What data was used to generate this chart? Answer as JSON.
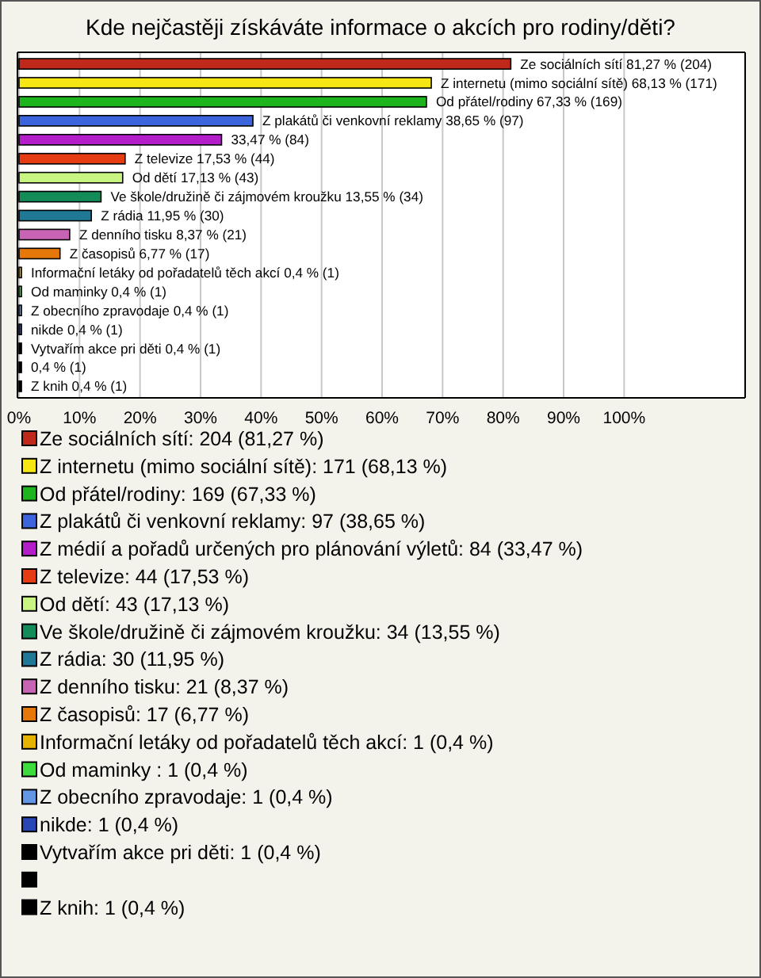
{
  "chart_data": {
    "type": "bar",
    "orientation": "horizontal",
    "title": "Kde nejčastěji získáváte informace o akcích pro rodiny/děti?",
    "categories": [
      null,
      null,
      null,
      null,
      null,
      null,
      null,
      null,
      null,
      null,
      null,
      null,
      null,
      null,
      null,
      null,
      null,
      null
    ],
    "series": [
      {
        "name": "Ze sociálních sítí: 204 (81,27 %)",
        "color": "#c0281c",
        "values": [
          81.27,
          null,
          null,
          null,
          null,
          null,
          null,
          null,
          null,
          null,
          null,
          null,
          null,
          null,
          null,
          null,
          null,
          null
        ],
        "value_labels": [
          "Ze sociálních sítí 81,27 % (204)",
          null,
          null,
          null,
          null,
          null,
          null,
          null,
          null,
          null,
          null,
          null,
          null,
          null,
          null,
          null,
          null,
          null
        ]
      },
      {
        "name": "Z internetu (mimo sociální sítě): 171 (68,13 %)",
        "color": "#f5e614",
        "values": [
          null,
          68.13,
          null,
          null,
          null,
          null,
          null,
          null,
          null,
          null,
          null,
          null,
          null,
          null,
          null,
          null,
          null,
          null
        ],
        "value_labels": [
          null,
          "Z internetu (mimo sociální sítě) 68,13 % (171)",
          null,
          null,
          null,
          null,
          null,
          null,
          null,
          null,
          null,
          null,
          null,
          null,
          null,
          null,
          null,
          null
        ]
      },
      {
        "name": "Od přátel/rodiny: 169 (67,33 %)",
        "color": "#1eb41e",
        "values": [
          null,
          null,
          67.33,
          null,
          null,
          null,
          null,
          null,
          null,
          null,
          null,
          null,
          null,
          null,
          null,
          null,
          null,
          null
        ],
        "value_labels": [
          null,
          null,
          "Od přátel/rodiny 67,33 % (169)",
          null,
          null,
          null,
          null,
          null,
          null,
          null,
          null,
          null,
          null,
          null,
          null,
          null,
          null,
          null
        ]
      },
      {
        "name": "Z plakátů či venkovní reklamy: 97 (38,65 %)",
        "color": "#3c64dc",
        "values": [
          null,
          null,
          null,
          38.65,
          null,
          null,
          null,
          null,
          null,
          null,
          null,
          null,
          null,
          null,
          null,
          null,
          null,
          null
        ],
        "value_labels": [
          null,
          null,
          null,
          "Z plakátů či venkovní reklamy 38,65 % (97)",
          null,
          null,
          null,
          null,
          null,
          null,
          null,
          null,
          null,
          null,
          null,
          null,
          null,
          null
        ]
      },
      {
        "name": "Z médií a pořadů určených pro plánování výletů: 84 (33,47 %)",
        "color": "#b41ec8",
        "values": [
          null,
          null,
          null,
          null,
          33.47,
          null,
          null,
          null,
          null,
          null,
          null,
          null,
          null,
          null,
          null,
          null,
          null,
          null
        ],
        "value_labels": [
          null,
          null,
          null,
          null,
          "33,47 % (84)",
          null,
          null,
          null,
          null,
          null,
          null,
          null,
          null,
          null,
          null,
          null,
          null,
          null
        ]
      },
      {
        "name": "Z televize: 44 (17,53 %)",
        "color": "#e63c14",
        "values": [
          null,
          null,
          null,
          null,
          null,
          17.53,
          null,
          null,
          null,
          null,
          null,
          null,
          null,
          null,
          null,
          null,
          null,
          null
        ],
        "value_labels": [
          null,
          null,
          null,
          null,
          null,
          "Z televize 17,53 % (44)",
          null,
          null,
          null,
          null,
          null,
          null,
          null,
          null,
          null,
          null,
          null,
          null
        ]
      },
      {
        "name": "Od dětí: 43 (17,13 %)",
        "color": "#c8f582",
        "values": [
          null,
          null,
          null,
          null,
          null,
          null,
          17.13,
          null,
          null,
          null,
          null,
          null,
          null,
          null,
          null,
          null,
          null,
          null
        ],
        "value_labels": [
          null,
          null,
          null,
          null,
          null,
          null,
          "Od dětí 17,13 % (43)",
          null,
          null,
          null,
          null,
          null,
          null,
          null,
          null,
          null,
          null,
          null
        ]
      },
      {
        "name": "Ve škole/družině či zájmovém kroužku: 34 (13,55 %)",
        "color": "#148c5a",
        "values": [
          null,
          null,
          null,
          null,
          null,
          null,
          null,
          13.55,
          null,
          null,
          null,
          null,
          null,
          null,
          null,
          null,
          null,
          null
        ],
        "value_labels": [
          null,
          null,
          null,
          null,
          null,
          null,
          null,
          "Ve škole/družině či zájmovém kroužku 13,55 % (34)",
          null,
          null,
          null,
          null,
          null,
          null,
          null,
          null,
          null,
          null
        ]
      },
      {
        "name": "Z rádia: 30 (11,95 %)",
        "color": "#1e7896",
        "values": [
          null,
          null,
          null,
          null,
          null,
          null,
          null,
          null,
          11.95,
          null,
          null,
          null,
          null,
          null,
          null,
          null,
          null,
          null
        ],
        "value_labels": [
          null,
          null,
          null,
          null,
          null,
          null,
          null,
          null,
          "Z rádia 11,95 % (30)",
          null,
          null,
          null,
          null,
          null,
          null,
          null,
          null,
          null
        ]
      },
      {
        "name": "Z denního tisku: 21 (8,37 %)",
        "color": "#c864b4",
        "values": [
          null,
          null,
          null,
          null,
          null,
          null,
          null,
          null,
          null,
          8.37,
          null,
          null,
          null,
          null,
          null,
          null,
          null,
          null
        ],
        "value_labels": [
          null,
          null,
          null,
          null,
          null,
          null,
          null,
          null,
          null,
          "Z denního tisku 8,37 % (21)",
          null,
          null,
          null,
          null,
          null,
          null,
          null,
          null
        ]
      },
      {
        "name": "Z časopisů: 17 (6,77 %)",
        "color": "#e6780a",
        "values": [
          null,
          null,
          null,
          null,
          null,
          null,
          null,
          null,
          null,
          null,
          6.77,
          null,
          null,
          null,
          null,
          null,
          null,
          null
        ],
        "value_labels": [
          null,
          null,
          null,
          null,
          null,
          null,
          null,
          null,
          null,
          null,
          "Z časopisů 6,77 % (17)",
          null,
          null,
          null,
          null,
          null,
          null,
          null
        ]
      },
      {
        "name": "Informační letáky od pořadatelů těch akcí: 1 (0,4 %)",
        "color": "#e6b400",
        "values": [
          null,
          null,
          null,
          null,
          null,
          null,
          null,
          null,
          null,
          null,
          null,
          0.4,
          null,
          null,
          null,
          null,
          null,
          null
        ],
        "value_labels": [
          null,
          null,
          null,
          null,
          null,
          null,
          null,
          null,
          null,
          null,
          null,
          "Informační letáky od pořadatelů těch akcí 0,4 % (1)",
          null,
          null,
          null,
          null,
          null,
          null
        ]
      },
      {
        "name": "Od maminky : 1 (0,4 %)",
        "color": "#3cdc3c",
        "values": [
          null,
          null,
          null,
          null,
          null,
          null,
          null,
          null,
          null,
          null,
          null,
          null,
          0.4,
          null,
          null,
          null,
          null,
          null
        ],
        "value_labels": [
          null,
          null,
          null,
          null,
          null,
          null,
          null,
          null,
          null,
          null,
          null,
          null,
          "Od maminky  0,4 % (1)",
          null,
          null,
          null,
          null,
          null
        ]
      },
      {
        "name": "Z obecního zpravodaje: 1 (0,4 %)",
        "color": "#6496e6",
        "values": [
          null,
          null,
          null,
          null,
          null,
          null,
          null,
          null,
          null,
          null,
          null,
          null,
          null,
          0.4,
          null,
          null,
          null,
          null
        ],
        "value_labels": [
          null,
          null,
          null,
          null,
          null,
          null,
          null,
          null,
          null,
          null,
          null,
          null,
          null,
          "Z obecního zpravodaje 0,4 % (1)",
          null,
          null,
          null,
          null
        ]
      },
      {
        "name": "nikde: 1 (0,4 %)",
        "color": "#2846b4",
        "values": [
          null,
          null,
          null,
          null,
          null,
          null,
          null,
          null,
          null,
          null,
          null,
          null,
          null,
          null,
          0.4,
          null,
          null,
          null
        ],
        "value_labels": [
          null,
          null,
          null,
          null,
          null,
          null,
          null,
          null,
          null,
          null,
          null,
          null,
          null,
          null,
          "nikde 0,4 % (1)",
          null,
          null,
          null
        ]
      },
      {
        "name": "Vytvařím akce pri děti: 1 (0,4 %)",
        "color": "#000000",
        "values": [
          null,
          null,
          null,
          null,
          null,
          null,
          null,
          null,
          null,
          null,
          null,
          null,
          null,
          null,
          null,
          0.4,
          null,
          null
        ],
        "value_labels": [
          null,
          null,
          null,
          null,
          null,
          null,
          null,
          null,
          null,
          null,
          null,
          null,
          null,
          null,
          null,
          "Vytvařím akce pri děti 0,4 % (1)",
          null,
          null
        ]
      },
      {
        "color": "#000000",
        "values": [
          null,
          null,
          null,
          null,
          null,
          null,
          null,
          null,
          null,
          null,
          null,
          null,
          null,
          null,
          null,
          null,
          0.4,
          null
        ],
        "value_labels": [
          null,
          null,
          null,
          null,
          null,
          null,
          null,
          null,
          null,
          null,
          null,
          null,
          null,
          null,
          null,
          null,
          "0,4 % (1)",
          null
        ]
      },
      {
        "name": "Z knih: 1 (0,4 %)",
        "color": "#000000",
        "values": [
          null,
          null,
          null,
          null,
          null,
          null,
          null,
          null,
          null,
          null,
          null,
          null,
          null,
          null,
          null,
          null,
          null,
          0.4
        ],
        "value_labels": [
          null,
          null,
          null,
          null,
          null,
          null,
          null,
          null,
          null,
          null,
          null,
          null,
          null,
          null,
          null,
          null,
          null,
          "Z knih 0,4 % (1)"
        ]
      }
    ],
    "xlim": [
      0,
      120
    ],
    "xticks": [
      {
        "value": 0,
        "label": "0%"
      },
      {
        "value": 10,
        "label": "10%"
      },
      {
        "value": 20,
        "label": "20%"
      },
      {
        "value": 30,
        "label": "30%"
      },
      {
        "value": 40,
        "label": "40%"
      },
      {
        "value": 50,
        "label": "50%"
      },
      {
        "value": 60,
        "label": "60%"
      },
      {
        "value": 70,
        "label": "70%"
      },
      {
        "value": 80,
        "label": "80%"
      },
      {
        "value": 90,
        "label": "90%"
      },
      {
        "value": 100,
        "label": "100%"
      }
    ],
    "grid": "x",
    "legend": "bottom"
  }
}
